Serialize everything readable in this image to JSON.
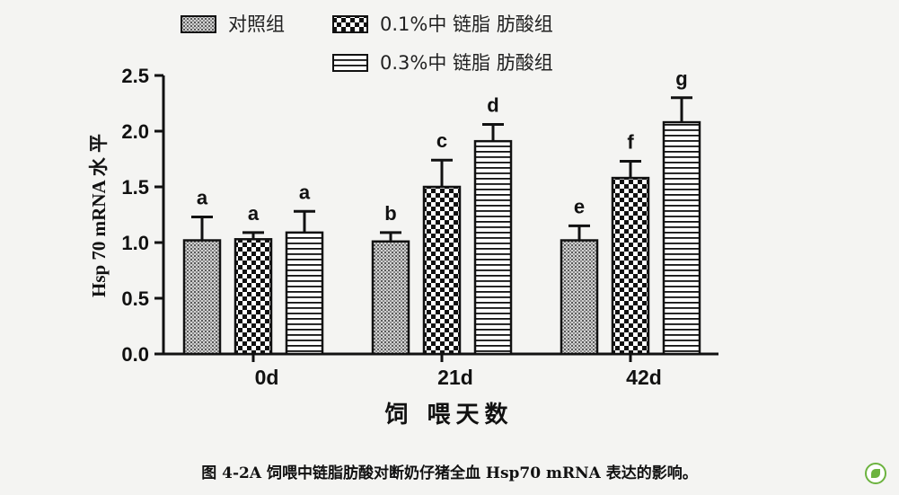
{
  "chart_data": {
    "type": "bar",
    "categories": [
      "0d",
      "21d",
      "42d"
    ],
    "series": [
      {
        "name": "对照组",
        "values": [
          1.02,
          1.01,
          1.02
        ],
        "errors": [
          0.21,
          0.08,
          0.13
        ],
        "labels": [
          "a",
          "b",
          "e"
        ]
      },
      {
        "name": "0.1%中 链脂 肪酸组",
        "values": [
          1.03,
          1.5,
          1.58
        ],
        "errors": [
          0.06,
          0.24,
          0.15
        ],
        "labels": [
          "a",
          "c",
          "f"
        ]
      },
      {
        "name": "0.3%中 链脂 肪酸组",
        "values": [
          1.09,
          1.91,
          2.08
        ],
        "errors": [
          0.19,
          0.15,
          0.22
        ],
        "labels": [
          "a",
          "d",
          "g"
        ]
      }
    ],
    "xlabel": "饲  喂天数",
    "ylabel": "Hsp 70 mRNA 水 平",
    "ylim": [
      0,
      2.5
    ],
    "yticks": [
      "0.0",
      "0.5",
      "1.0",
      "1.5",
      "2.0",
      "2.5"
    ],
    "legend_position": "top",
    "grid": false
  },
  "caption": "图 4-2A  饲喂中链脂肪酸对断奶仔猪全血 Hsp70 mRNA 表达的影响。",
  "logo_icon": "leaf-logo-icon"
}
